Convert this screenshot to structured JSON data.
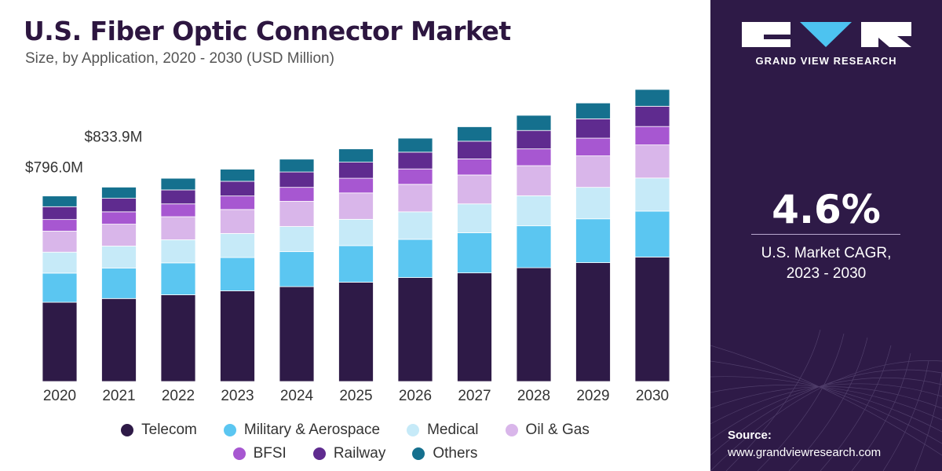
{
  "header": {
    "title": "U.S. Fiber Optic Connector Market",
    "subtitle": "Size, by Application, 2020 - 2030 (USD Million)"
  },
  "chart_data": {
    "type": "bar",
    "stacked": true,
    "categories": [
      "2020",
      "2021",
      "2022",
      "2023",
      "2024",
      "2025",
      "2026",
      "2027",
      "2028",
      "2029",
      "2030"
    ],
    "series": [
      {
        "name": "Telecom",
        "color": "#2e1a47",
        "values": [
          340,
          356,
          372,
          389,
          407,
          426,
          446,
          466,
          488,
          510,
          534
        ]
      },
      {
        "name": "Military & Aerospace",
        "color": "#5bc6f1",
        "values": [
          125,
          131,
          137,
          143,
          150,
          157,
          164,
          172,
          180,
          188,
          197
        ]
      },
      {
        "name": "Medical",
        "color": "#c6eaf8",
        "values": [
          90,
          94,
          99,
          103,
          108,
          113,
          118,
          124,
          129,
          135,
          142
        ]
      },
      {
        "name": "Oil & Gas",
        "color": "#d9b6ea",
        "values": [
          90,
          94,
          99,
          103,
          108,
          113,
          118,
          124,
          129,
          135,
          142
        ]
      },
      {
        "name": "BFSI",
        "color": "#a757d1",
        "values": [
          50,
          53,
          55,
          58,
          60,
          63,
          66,
          69,
          72,
          76,
          79
        ]
      },
      {
        "name": "Railway",
        "color": "#5f2b8f",
        "values": [
          55,
          58,
          60,
          63,
          66,
          69,
          72,
          76,
          79,
          83,
          87
        ]
      },
      {
        "name": "Others",
        "color": "#15708e",
        "values": [
          46,
          48,
          50,
          52,
          55,
          57,
          60,
          62,
          65,
          68,
          72
        ]
      }
    ],
    "data_labels": [
      {
        "category": "2020",
        "text": "$796.0M"
      },
      {
        "category": "2021",
        "text": "$833.9M"
      }
    ],
    "ylim": [
      0,
      1300
    ],
    "grid": false,
    "legend_position": "bottom"
  },
  "sidebar": {
    "brand": "GRAND VIEW RESEARCH",
    "cagr_value": "4.6%",
    "cagr_label_line1": "U.S. Market CAGR,",
    "cagr_label_line2": "2023 - 2030",
    "source_label": "Source:",
    "source_url": "www.grandviewresearch.com"
  }
}
